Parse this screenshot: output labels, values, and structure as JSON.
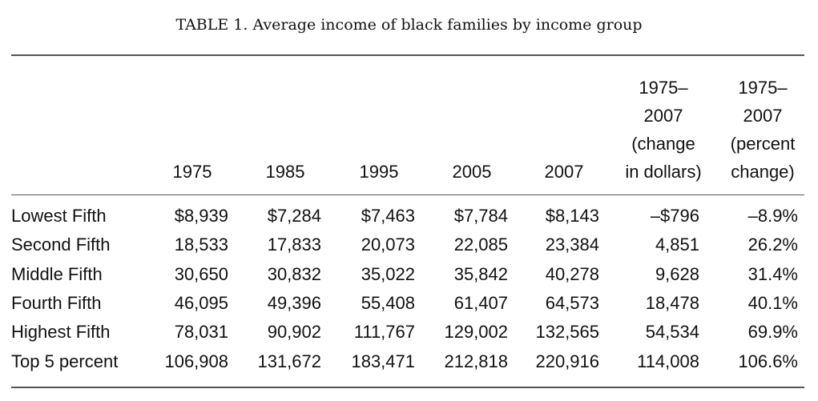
{
  "caption": "TABLE 1. Average income of black families by income group",
  "columns": [
    {
      "lines": [
        "",
        "",
        "",
        "1975"
      ]
    },
    {
      "lines": [
        "",
        "",
        "",
        "1985"
      ]
    },
    {
      "lines": [
        "",
        "",
        "",
        "1995"
      ]
    },
    {
      "lines": [
        "",
        "",
        "",
        "2005"
      ]
    },
    {
      "lines": [
        "",
        "",
        "",
        "2007"
      ]
    },
    {
      "lines": [
        "1975–",
        "2007",
        "(change",
        "in dollars)"
      ]
    },
    {
      "lines": [
        "1975–",
        "2007",
        "(percent",
        "change)"
      ]
    }
  ],
  "rows": [
    {
      "label": "Lowest Fifth",
      "values": [
        "$8,939",
        "$7,284",
        "$7,463",
        "$7,784",
        "$8,143",
        "–$796",
        "–8.9%"
      ]
    },
    {
      "label": "Second Fifth",
      "values": [
        "18,533",
        "17,833",
        "20,073",
        "22,085",
        "23,384",
        "4,851",
        "26.2%"
      ]
    },
    {
      "label": "Middle Fifth",
      "values": [
        "30,650",
        "30,832",
        "35,022",
        "35,842",
        "40,278",
        "9,628",
        "31.4%"
      ]
    },
    {
      "label": "Fourth Fifth",
      "values": [
        "46,095",
        "49,396",
        "55,408",
        "61,407",
        "64,573",
        "18,478",
        "40.1%"
      ]
    },
    {
      "label": "Highest Fifth",
      "values": [
        "78,031",
        "90,902",
        "111,767",
        "129,002",
        "132,565",
        "54,534",
        "69.9%"
      ]
    },
    {
      "label": "Top 5 percent",
      "values": [
        "106,908",
        "131,672",
        "183,471",
        "212,818",
        "220,916",
        "114,008",
        "106.6%"
      ]
    }
  ]
}
